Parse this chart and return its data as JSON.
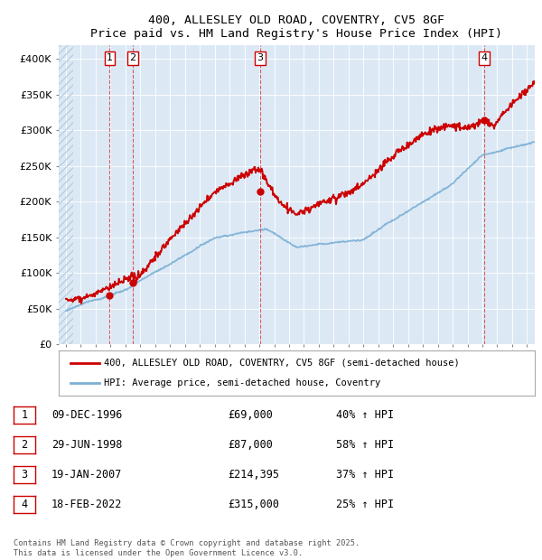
{
  "title": "400, ALLESLEY OLD ROAD, COVENTRY, CV5 8GF",
  "subtitle": "Price paid vs. HM Land Registry's House Price Index (HPI)",
  "ylim": [
    0,
    420000
  ],
  "yticks": [
    0,
    50000,
    100000,
    150000,
    200000,
    250000,
    300000,
    350000,
    400000
  ],
  "ytick_labels": [
    "£0",
    "£50K",
    "£100K",
    "£150K",
    "£200K",
    "£250K",
    "£300K",
    "£350K",
    "£400K"
  ],
  "bg_color": "#dce9f5",
  "red_color": "#cc0000",
  "blue_color": "#7bafd4",
  "transaction_dates": [
    1996.93,
    1998.49,
    2007.05,
    2022.12
  ],
  "transaction_prices": [
    69000,
    87000,
    214395,
    315000
  ],
  "transaction_labels": [
    "1",
    "2",
    "3",
    "4"
  ],
  "legend_label_red": "400, ALLESLEY OLD ROAD, COVENTRY, CV5 8GF (semi-detached house)",
  "legend_label_blue": "HPI: Average price, semi-detached house, Coventry",
  "table_rows": [
    [
      "1",
      "09-DEC-1996",
      "£69,000",
      "40% ↑ HPI"
    ],
    [
      "2",
      "29-JUN-1998",
      "£87,000",
      "58% ↑ HPI"
    ],
    [
      "3",
      "19-JAN-2007",
      "£214,395",
      "37% ↑ HPI"
    ],
    [
      "4",
      "18-FEB-2022",
      "£315,000",
      "25% ↑ HPI"
    ]
  ],
  "footer": "Contains HM Land Registry data © Crown copyright and database right 2025.\nThis data is licensed under the Open Government Licence v3.0.",
  "xlim_start": 1993.5,
  "xlim_end": 2025.5,
  "hatch_end": 1994.5
}
